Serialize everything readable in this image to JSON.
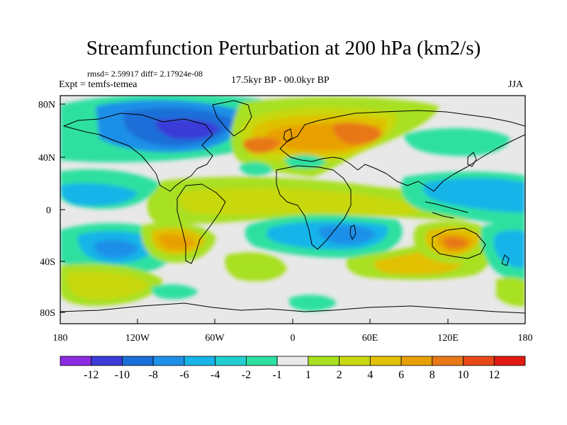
{
  "title": "Streamfunction Perturbation at 200 hPa (km2/s)",
  "stats": "rmsd= 2.59917 diff= 2.17924e-08",
  "experiment": "Expt = temfs-temea",
  "period": "17.5kyr BP - 00.0kyr BP",
  "season": "JJA",
  "map": {
    "lat_ticks": [
      "80N",
      "40N",
      "0",
      "40S",
      "80S"
    ],
    "lon_ticks": [
      "180",
      "120W",
      "60W",
      "0",
      "60E",
      "120E",
      "180"
    ]
  },
  "colorbar": {
    "colors": [
      "#8b2be2",
      "#3b3bd8",
      "#1a6ed8",
      "#1e90e8",
      "#18b4e8",
      "#22cfd0",
      "#2de0a0",
      "#e8e8e8",
      "#a8e020",
      "#c8d810",
      "#e0c000",
      "#e8a000",
      "#e87818",
      "#e84818",
      "#e01a10"
    ],
    "labels": [
      "-12",
      "-10",
      "-8",
      "-6",
      "-4",
      "-2",
      "-1",
      "1",
      "2",
      "4",
      "6",
      "8",
      "10",
      "12"
    ]
  },
  "field": {
    "palette": {
      "d5": "#3b3bd8",
      "d4": "#1a6ed8",
      "d3": "#1e90e8",
      "d2": "#18b4e8",
      "d1": "#2de0a0",
      "z": "#e8e8e8",
      "p1": "#a8e020",
      "p2": "#c8d810",
      "p3": "#e0c000",
      "p4": "#e8a000",
      "p5": "#e87818",
      "p6": "#e84818"
    }
  }
}
